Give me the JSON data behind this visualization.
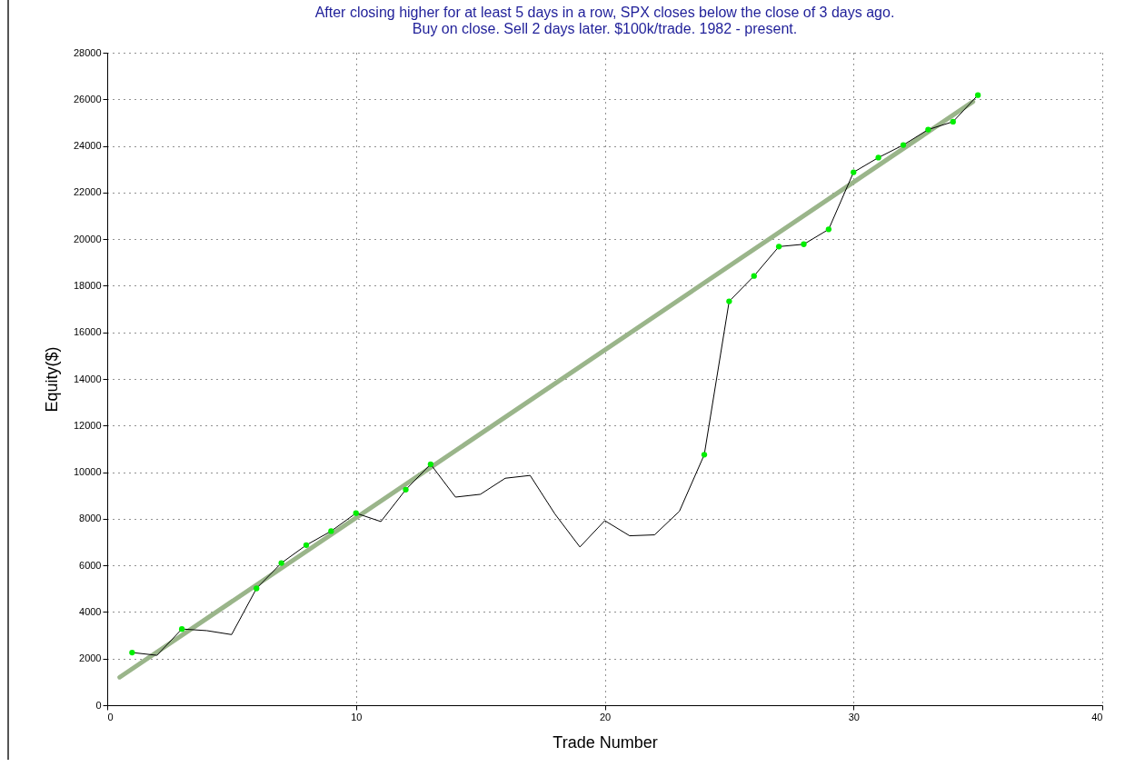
{
  "chart_data": {
    "type": "line",
    "title": "After closing higher for at least 5 days in a row, SPX closes below the close of 3 days ago.",
    "subtitle": "Buy on close. Sell 2 days later. $100k/trade. 1982 - present.",
    "xlabel": "Trade Number",
    "ylabel": "Equity($)",
    "xlim": [
      0,
      40
    ],
    "xticks": [
      0,
      10,
      20,
      30,
      40
    ],
    "ylim": [
      0,
      28000
    ],
    "yticks": [
      0,
      2000,
      4000,
      6000,
      8000,
      10000,
      12000,
      14000,
      16000,
      18000,
      20000,
      22000,
      24000,
      26000,
      28000
    ],
    "grid": true,
    "series": [
      {
        "color": "#9ab58a",
        "x": [
          0.5,
          34.8
        ],
        "values": [
          1200,
          25900
        ]
      },
      {
        "color": "#000000",
        "marker": "none",
        "x": [
          1,
          2,
          3,
          4,
          5,
          6,
          7,
          8,
          9,
          10,
          11,
          12,
          13,
          14,
          15,
          16,
          17,
          18,
          19,
          20,
          21,
          22,
          23,
          24,
          25,
          26,
          27,
          28,
          29,
          30,
          31,
          32,
          33,
          34,
          35
        ],
        "values": [
          2260,
          2140,
          3270,
          3200,
          3030,
          5010,
          6100,
          6870,
          7470,
          8240,
          7880,
          9250,
          10340,
          8930,
          9050,
          9740,
          9860,
          8200,
          6790,
          7920,
          7270,
          7310,
          8320,
          10750,
          17330,
          18420,
          19680,
          19780,
          20420,
          22870,
          23500,
          24040,
          24700,
          25040,
          26180
        ]
      },
      {
        "type": "scatter",
        "color": "#00ee00",
        "marker": "circle",
        "x": [
          1,
          3,
          6,
          7,
          8,
          9,
          10,
          12,
          13,
          24,
          25,
          26,
          27,
          28,
          29,
          30,
          31,
          32,
          33,
          34,
          35
        ],
        "values": [
          2260,
          3270,
          5010,
          6100,
          6870,
          7470,
          8240,
          9250,
          10340,
          10750,
          17330,
          18420,
          19680,
          19780,
          20420,
          22870,
          23500,
          24040,
          24700,
          25040,
          26180
        ]
      }
    ]
  }
}
